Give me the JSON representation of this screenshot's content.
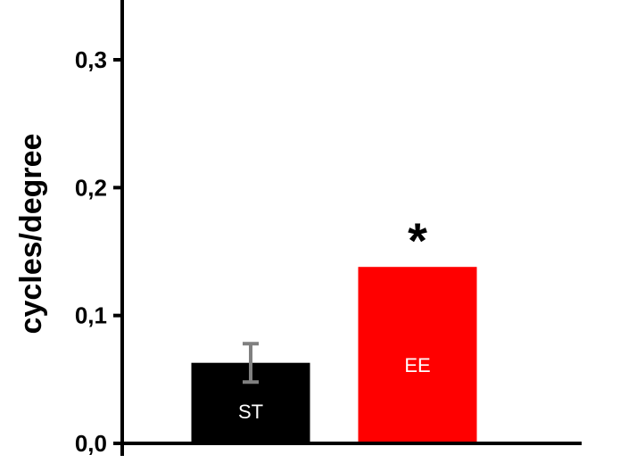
{
  "chart_data": {
    "type": "bar",
    "title": "",
    "xlabel": "",
    "ylabel": "cycles/degree",
    "categories": [
      "ST",
      "EE"
    ],
    "values": [
      0.063,
      0.138
    ],
    "errors": [
      0.015,
      null
    ],
    "colors": [
      "#000000",
      "#ff0000"
    ],
    "error_color": "#808080",
    "ylim": [
      0,
      0.35
    ],
    "yticks": [
      0.0,
      0.1,
      0.2,
      0.3
    ],
    "ytick_labels": [
      "0,0",
      "0,1",
      "0,2",
      "0,3"
    ],
    "annotations": [
      {
        "category": "EE",
        "text": "*"
      }
    ],
    "grid": false,
    "legend": "none"
  }
}
